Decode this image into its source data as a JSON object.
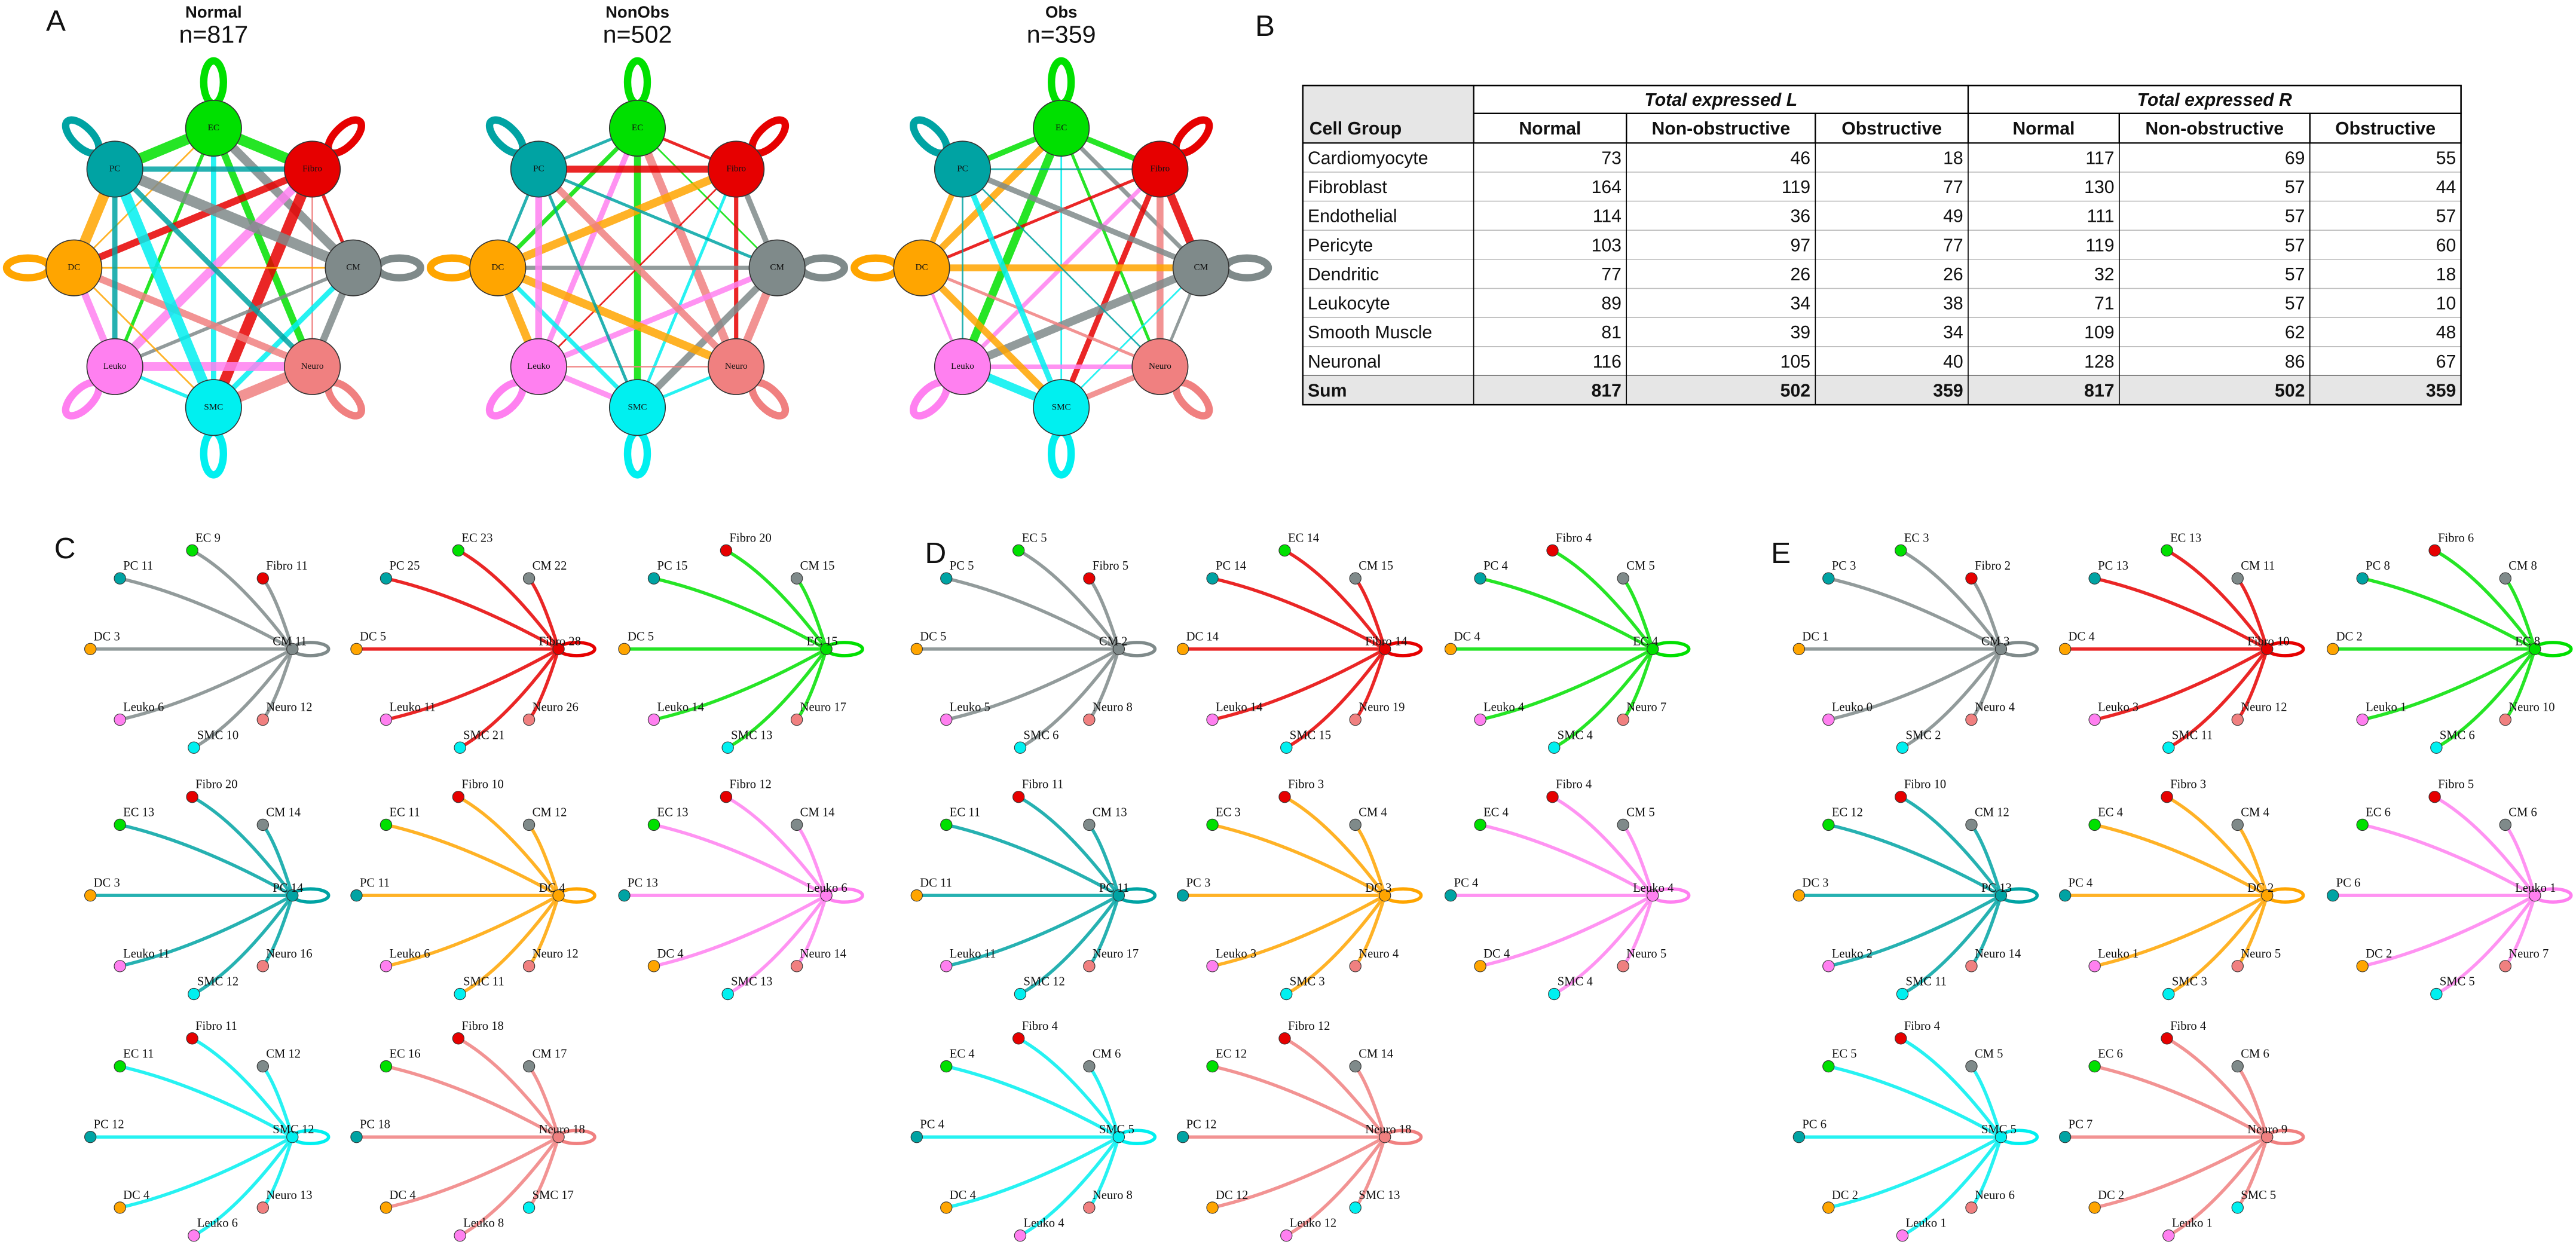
{
  "colors": {
    "PC": "#00a3a3",
    "EC": "#00e000",
    "Fibro": "#e60000",
    "CM": "#7f8a8a",
    "DC": "#ffa500",
    "Leuko": "#ff80f0",
    "SMC": "#00f0f0",
    "Neuro": "#f08080"
  },
  "network_panel": {
    "label": "A",
    "nodes": [
      "EC",
      "Fibro",
      "CM",
      "Neuro",
      "SMC",
      "Leuko",
      "DC",
      "PC"
    ],
    "networks": [
      {
        "title": "Normal",
        "n": "n=817"
      },
      {
        "title": "NonObs",
        "n": "n=502"
      },
      {
        "title": "Obs",
        "n": "n=359"
      }
    ]
  },
  "table_panel": {
    "label": "B",
    "row_header": "Cell Group",
    "groups": [
      "Total expressed L",
      "Total expressed R"
    ],
    "columns": [
      "Normal",
      "Non-obstructive",
      "Obstructive",
      "Normal",
      "Non-obstructive",
      "Obstructive"
    ],
    "rows": [
      [
        "Cardiomyocyte",
        73,
        46,
        18,
        117,
        69,
        55
      ],
      [
        "Fibroblast",
        164,
        119,
        77,
        130,
        57,
        44
      ],
      [
        "Endothelial",
        114,
        36,
        49,
        111,
        57,
        57
      ],
      [
        "Pericyte",
        103,
        97,
        77,
        119,
        57,
        60
      ],
      [
        "Dendritic",
        77,
        26,
        26,
        32,
        57,
        18
      ],
      [
        "Leukocyte",
        89,
        34,
        38,
        71,
        57,
        10
      ],
      [
        "Smooth Muscle",
        81,
        39,
        34,
        109,
        62,
        48
      ],
      [
        "Neuronal",
        116,
        105,
        40,
        128,
        86,
        67
      ],
      [
        "Sum",
        817,
        502,
        359,
        817,
        502,
        359
      ]
    ]
  },
  "circle_panels": [
    {
      "label": "C",
      "plots": [
        {
          "sender": "CM 11",
          "nodes": [
            "PC 11",
            "EC 9",
            "Fibro 11",
            "DC 3",
            "Leuko 6",
            "SMC 10",
            "Neuro 12"
          ]
        },
        {
          "sender": "Fibro 28",
          "nodes": [
            "PC 25",
            "EC 23",
            "CM 22",
            "DC 5",
            "Leuko 11",
            "SMC 21",
            "Neuro 26"
          ]
        },
        {
          "sender": "EC 15",
          "nodes": [
            "PC 15",
            "Fibro 20",
            "CM 15",
            "DC 5",
            "Leuko 14",
            "SMC 13",
            "Neuro 17"
          ]
        },
        {
          "sender": "PC 14",
          "nodes": [
            "EC 13",
            "Fibro 20",
            "CM 14",
            "DC 3",
            "Leuko 11",
            "SMC 12",
            "Neuro 16"
          ]
        },
        {
          "sender": "DC 4",
          "nodes": [
            "EC 11",
            "Fibro 10",
            "CM 12",
            "PC 11",
            "Leuko 6",
            "SMC 11",
            "Neuro 12"
          ]
        },
        {
          "sender": "Leuko 6",
          "nodes": [
            "EC 13",
            "Fibro 12",
            "CM 14",
            "PC 13",
            "DC 4",
            "SMC 13",
            "Neuro 14"
          ]
        },
        {
          "sender": "SMC 12",
          "nodes": [
            "EC 11",
            "Fibro 11",
            "CM 12",
            "PC 12",
            "DC 4",
            "Leuko 6",
            "Neuro 13"
          ]
        },
        {
          "sender": "Neuro 18",
          "nodes": [
            "EC 16",
            "Fibro 18",
            "CM 17",
            "PC 18",
            "DC 4",
            "Leuko 8",
            "SMC 17"
          ]
        }
      ]
    },
    {
      "label": "D",
      "plots": [
        {
          "sender": "CM 2",
          "nodes": [
            "PC 5",
            "EC 5",
            "Fibro 5",
            "DC 5",
            "Leuko 5",
            "SMC 6",
            "Neuro 8"
          ]
        },
        {
          "sender": "Fibro 14",
          "nodes": [
            "PC 14",
            "EC 14",
            "CM 15",
            "DC 14",
            "Leuko 14",
            "SMC 15",
            "Neuro 19"
          ]
        },
        {
          "sender": "EC 4",
          "nodes": [
            "PC 4",
            "Fibro 4",
            "CM 5",
            "DC 4",
            "Leuko 4",
            "SMC 4",
            "Neuro 7"
          ]
        },
        {
          "sender": "PC 11",
          "nodes": [
            "EC 11",
            "Fibro 11",
            "CM 13",
            "DC 11",
            "Leuko 11",
            "SMC 12",
            "Neuro 17"
          ]
        },
        {
          "sender": "DC 3",
          "nodes": [
            "EC 3",
            "Fibro 3",
            "CM 4",
            "PC 3",
            "Leuko 3",
            "SMC 3",
            "Neuro 4"
          ]
        },
        {
          "sender": "Leuko 4",
          "nodes": [
            "EC 4",
            "Fibro 4",
            "CM 5",
            "PC 4",
            "DC 4",
            "SMC 4",
            "Neuro 5"
          ]
        },
        {
          "sender": "SMC 5",
          "nodes": [
            "EC 4",
            "Fibro 4",
            "CM 6",
            "PC 4",
            "DC 4",
            "Leuko 4",
            "Neuro 8"
          ]
        },
        {
          "sender": "Neuro 18",
          "nodes": [
            "EC 12",
            "Fibro 12",
            "CM 14",
            "PC 12",
            "DC 12",
            "Leuko 12",
            "SMC 13"
          ]
        }
      ]
    },
    {
      "label": "E",
      "plots": [
        {
          "sender": "CM 3",
          "nodes": [
            "PC 3",
            "EC 3",
            "Fibro 2",
            "DC 1",
            "Leuko 0",
            "SMC 2",
            "Neuro 4"
          ]
        },
        {
          "sender": "Fibro 10",
          "nodes": [
            "PC 13",
            "EC 13",
            "CM 11",
            "DC 4",
            "Leuko 3",
            "SMC 11",
            "Neuro 12"
          ]
        },
        {
          "sender": "EC 8",
          "nodes": [
            "PC 8",
            "Fibro 6",
            "CM 8",
            "DC 2",
            "Leuko 1",
            "SMC 6",
            "Neuro 10"
          ]
        },
        {
          "sender": "PC 13",
          "nodes": [
            "EC 12",
            "Fibro 10",
            "CM 12",
            "DC 3",
            "Leuko 2",
            "SMC 11",
            "Neuro 14"
          ]
        },
        {
          "sender": "DC 2",
          "nodes": [
            "EC 4",
            "Fibro 3",
            "CM 4",
            "PC 4",
            "Leuko 1",
            "SMC 3",
            "Neuro 5"
          ]
        },
        {
          "sender": "Leuko 1",
          "nodes": [
            "EC 6",
            "Fibro 5",
            "CM 6",
            "PC 6",
            "DC 2",
            "SMC 5",
            "Neuro 7"
          ]
        },
        {
          "sender": "SMC 5",
          "nodes": [
            "EC 5",
            "Fibro 4",
            "CM 5",
            "PC 6",
            "DC 2",
            "Leuko 1",
            "Neuro 6"
          ]
        },
        {
          "sender": "Neuro 9",
          "nodes": [
            "EC 6",
            "Fibro 4",
            "CM 6",
            "PC 7",
            "DC 2",
            "Leuko 1",
            "SMC 5"
          ]
        }
      ]
    }
  ]
}
